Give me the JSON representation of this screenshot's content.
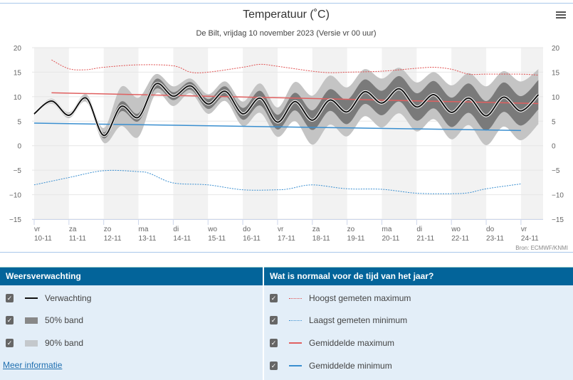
{
  "title": "Temperatuur (˚C)",
  "subtitle": "De Bilt, vrijdag 10 november 2023 (Versie vr 00 uur)",
  "source": "Bron: ECMWF/KNMI",
  "menu_icon": "hamburger-menu-icon",
  "colors": {
    "forecast": "#111111",
    "band50": "#7a7a7a",
    "band90": "#c4c4c4",
    "record": "#e05050",
    "mean_max": "#e05050",
    "mean_min": "#3a8fd0",
    "header": "#03649a",
    "panel": "#e3eef8"
  },
  "chart_data": {
    "type": "line",
    "title": "Temperatuur (˚C)",
    "ylim": [
      -15,
      20
    ],
    "yticks": [
      "20",
      "15",
      "10",
      "5",
      "0",
      "−5",
      "−10",
      "−15"
    ],
    "ytick_values": [
      20,
      15,
      10,
      5,
      0,
      -5,
      -10,
      -15
    ],
    "xticks": [
      {
        "day": "vr",
        "date": "10-11"
      },
      {
        "day": "za",
        "date": "11-11"
      },
      {
        "day": "zo",
        "date": "12-11"
      },
      {
        "day": "ma",
        "date": "13-11"
      },
      {
        "day": "di",
        "date": "14-11"
      },
      {
        "day": "wo",
        "date": "15-11"
      },
      {
        "day": "do",
        "date": "16-11"
      },
      {
        "day": "vr",
        "date": "17-11"
      },
      {
        "day": "za",
        "date": "18-11"
      },
      {
        "day": "zo",
        "date": "19-11"
      },
      {
        "day": "ma",
        "date": "20-11"
      },
      {
        "day": "di",
        "date": "21-11"
      },
      {
        "day": "wo",
        "date": "22-11"
      },
      {
        "day": "do",
        "date": "23-11"
      },
      {
        "day": "vr",
        "date": "24-11"
      }
    ],
    "grid": true,
    "times": [
      "2023-11-10T00:00",
      "2023-11-10T12:00",
      "2023-11-11T00:00",
      "2023-11-11T12:00",
      "2023-11-12T00:00",
      "2023-11-12T12:00",
      "2023-11-13T00:00",
      "2023-11-13T12:00",
      "2023-11-14T00:00",
      "2023-11-14T12:00",
      "2023-11-15T00:00",
      "2023-11-15T12:00",
      "2023-11-16T00:00",
      "2023-11-16T12:00",
      "2023-11-17T00:00",
      "2023-11-17T12:00",
      "2023-11-18T00:00",
      "2023-11-18T12:00",
      "2023-11-19T00:00",
      "2023-11-19T12:00",
      "2023-11-20T00:00",
      "2023-11-20T12:00",
      "2023-11-21T00:00",
      "2023-11-21T12:00",
      "2023-11-22T00:00",
      "2023-11-22T12:00",
      "2023-11-23T00:00",
      "2023-11-23T12:00",
      "2023-11-24T00:00",
      "2023-11-24T12:00"
    ],
    "forecast": [
      6.5,
      9.1,
      6.2,
      9.7,
      2.1,
      8.0,
      5.8,
      12.6,
      10.1,
      12.2,
      8.5,
      11.1,
      6.5,
      9.7,
      4.8,
      9.0,
      5.2,
      9.3,
      6.9,
      11.0,
      8.7,
      11.6,
      7.9,
      10.4,
      6.8,
      9.7,
      6.1,
      9.9,
      7.1,
      10.4
    ],
    "band50_low": [
      6.3,
      8.8,
      5.9,
      9.3,
      1.5,
      7.0,
      5.0,
      11.6,
      9.3,
      11.4,
      7.5,
      10.1,
      5.3,
      8.2,
      3.3,
      7.2,
      3.2,
      7.1,
      4.4,
      8.5,
      6.2,
      9.0,
      5.1,
      7.6,
      3.8,
      6.7,
      3.1,
      6.9,
      4.1,
      7.4
    ],
    "band50_high": [
      6.7,
      9.4,
      6.5,
      10.1,
      2.7,
      9.0,
      6.6,
      13.6,
      10.9,
      13.0,
      9.5,
      12.1,
      7.7,
      11.2,
      6.3,
      10.8,
      7.2,
      11.5,
      9.4,
      13.5,
      11.2,
      14.2,
      10.7,
      13.2,
      9.8,
      12.7,
      9.1,
      12.9,
      10.1,
      13.4
    ],
    "band90_low": [
      6.2,
      8.6,
      5.6,
      8.9,
      0.6,
      4.0,
      1.8,
      10.6,
      8.1,
      10.7,
      6.5,
      9.1,
      4.0,
      6.7,
      1.8,
      5.0,
      0.2,
      4.3,
      1.9,
      6.0,
      3.7,
      6.6,
      2.9,
      5.4,
      1.3,
      4.2,
      0.1,
      3.9,
      1.1,
      4.4
    ],
    "band90_high": [
      6.8,
      9.6,
      6.8,
      10.5,
      3.6,
      12.0,
      9.8,
      14.6,
      12.1,
      13.7,
      10.5,
      13.1,
      9.0,
      12.7,
      7.8,
      13.0,
      10.2,
      14.3,
      11.9,
      15.6,
      13.7,
      15.9,
      12.9,
      15.0,
      12.3,
      14.8,
      12.1,
      15.2,
      13.1,
      15.6
    ],
    "record_max": [
      [
        "2023-11-10T12:00",
        17.5
      ],
      [
        "2023-11-11T00:00",
        15.7
      ],
      [
        "2023-11-11T12:00",
        15.5
      ],
      [
        "2023-11-12T00:00",
        16.0
      ],
      [
        "2023-11-13T00:00",
        16.5
      ],
      [
        "2023-11-14T00:00",
        16.3
      ],
      [
        "2023-11-14T12:00",
        15.0
      ],
      [
        "2023-11-15T00:00",
        15.0
      ],
      [
        "2023-11-16T00:00",
        16.0
      ],
      [
        "2023-11-16T12:00",
        16.6
      ],
      [
        "2023-11-17T00:00",
        16.2
      ],
      [
        "2023-11-18T00:00",
        15.2
      ],
      [
        "2023-11-18T12:00",
        14.9
      ],
      [
        "2023-11-19T00:00",
        15.0
      ],
      [
        "2023-11-20T00:00",
        15.2
      ],
      [
        "2023-11-21T00:00",
        15.8
      ],
      [
        "2023-11-21T12:00",
        16.0
      ],
      [
        "2023-11-22T00:00",
        15.6
      ],
      [
        "2023-11-22T12:00",
        14.6
      ],
      [
        "2023-11-23T00:00",
        14.6
      ],
      [
        "2023-11-24T00:00",
        14.6
      ],
      [
        "2023-11-24T12:00",
        14.4
      ]
    ],
    "record_min": [
      [
        "2023-11-10T00:00",
        -8.0
      ],
      [
        "2023-11-11T00:00",
        -6.5
      ],
      [
        "2023-11-12T00:00",
        -5.1
      ],
      [
        "2023-11-13T00:00",
        -5.3
      ],
      [
        "2023-11-13T08:00",
        -5.7
      ],
      [
        "2023-11-14T00:00",
        -7.6
      ],
      [
        "2023-11-15T00:00",
        -8.0
      ],
      [
        "2023-11-16T00:00",
        -9.0
      ],
      [
        "2023-11-17T00:00",
        -9.0
      ],
      [
        "2023-11-17T08:00",
        -8.8
      ],
      [
        "2023-11-18T00:00",
        -8.0
      ],
      [
        "2023-11-19T00:00",
        -8.8
      ],
      [
        "2023-11-20T00:00",
        -8.9
      ],
      [
        "2023-11-21T00:00",
        -9.7
      ],
      [
        "2023-11-22T00:00",
        -9.8
      ],
      [
        "2023-11-22T12:00",
        -9.6
      ],
      [
        "2023-11-23T00:00",
        -8.8
      ],
      [
        "2023-11-24T00:00",
        -7.8
      ]
    ],
    "mean_max": [
      [
        "2023-11-10T12:00",
        10.8
      ],
      [
        "2023-11-24T12:00",
        8.6
      ]
    ],
    "mean_min": [
      [
        "2023-11-10T00:00",
        4.6
      ],
      [
        "2023-11-24T00:00",
        3.1
      ]
    ]
  },
  "legend_left": {
    "header": "Weersverwachting",
    "items": [
      {
        "label": "Verwachting",
        "checked": true
      },
      {
        "label": "50% band",
        "checked": true
      },
      {
        "label": "90% band",
        "checked": true
      }
    ],
    "more_link": "Meer informatie"
  },
  "legend_right": {
    "header": "Wat is normaal voor de tijd van het jaar?",
    "items": [
      {
        "label": "Hoogst gemeten maximum",
        "checked": true
      },
      {
        "label": "Laagst gemeten minimum",
        "checked": true
      },
      {
        "label": "Gemiddelde maximum",
        "checked": true
      },
      {
        "label": "Gemiddelde minimum",
        "checked": true
      }
    ]
  },
  "checkmark": "✓"
}
